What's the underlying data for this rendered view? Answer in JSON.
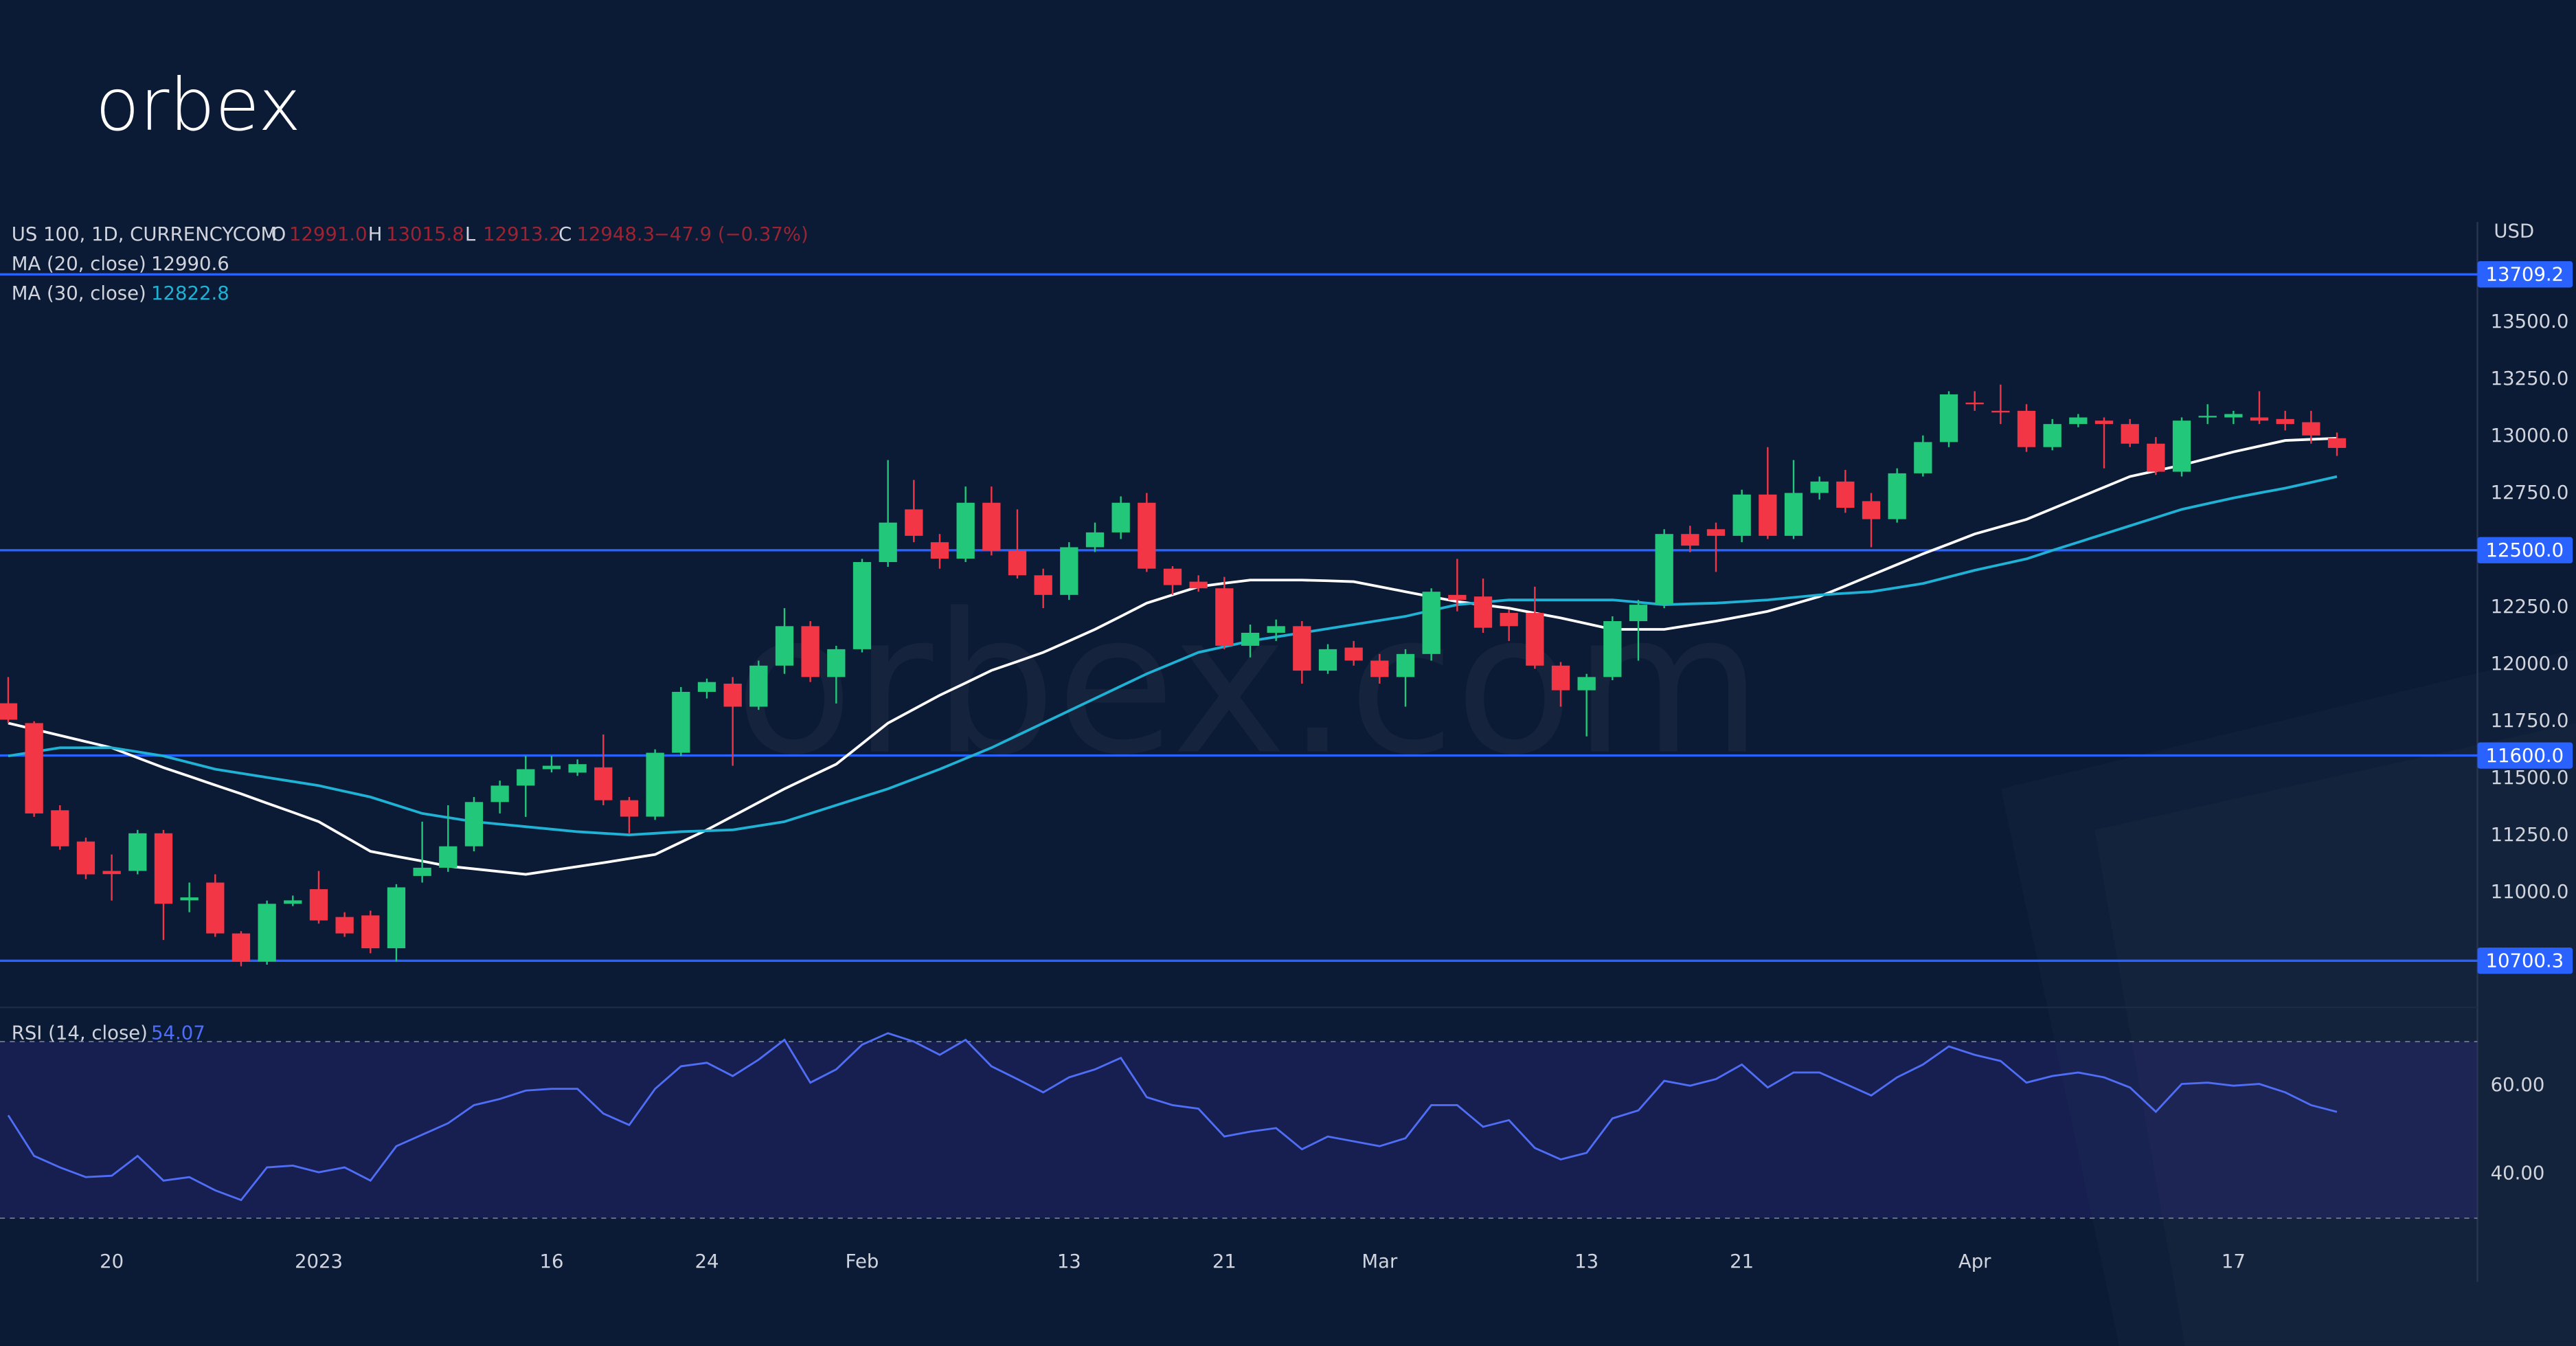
{
  "logo": "orbex",
  "watermark": "orbex.com",
  "chart_data": {
    "type": "candlestick",
    "symbol": "US 100, 1D, CURRENCYCOM",
    "ohlc": [
      {
        "label": "O",
        "value": "12991.0"
      },
      {
        "label": "H",
        "value": "13015.8"
      },
      {
        "label": "L",
        "value": "12913.2"
      },
      {
        "label": "C",
        "value": "12948.3"
      }
    ],
    "change": "−47.9 (−0.37%)",
    "currency": "USD",
    "colors": {
      "up": "#22c77a",
      "down": "#f23645",
      "header_value": "#9b2433"
    },
    "categories": [
      null,
      null,
      null,
      null,
      "20",
      null,
      null,
      null,
      null,
      null,
      null,
      null,
      "2023",
      null,
      null,
      null,
      null,
      null,
      null,
      null,
      null,
      "16",
      null,
      null,
      null,
      null,
      null,
      "24",
      null,
      null,
      null,
      null,
      null,
      "Feb",
      null,
      null,
      null,
      null,
      null,
      null,
      null,
      "13",
      null,
      null,
      null,
      null,
      null,
      "21",
      null,
      null,
      null,
      null,
      null,
      "Mar",
      null,
      null,
      null,
      null,
      null,
      null,
      null,
      "13",
      null,
      null,
      null,
      null,
      null,
      "21",
      null,
      null,
      null,
      null,
      null,
      null,
      null,
      null,
      "Apr",
      null,
      null,
      null,
      null,
      null,
      null,
      null,
      null,
      null,
      "17",
      null,
      null,
      null,
      null
    ],
    "open": [
      11829,
      11742,
      11360,
      11223,
      11094,
      11094,
      11259,
      10965,
      11043,
      10820,
      10697,
      10950,
      11014,
      10892,
      10899,
      10755,
      11072,
      11108,
      11202,
      11396,
      11468,
      11540,
      11525,
      11548,
      11404,
      11332,
      11612,
      11879,
      11915,
      11814,
      11994,
      12167,
      11944,
      12066,
      12448,
      12679,
      12535,
      12463,
      12708,
      12499,
      12390,
      12304,
      12513,
      12578,
      12708,
      12419,
      12362,
      12333,
      12081,
      12138,
      12167,
      11972,
      12073,
      12016,
      11944,
      12045,
      12304,
      12297,
      12225,
      12225,
      11994,
      11886,
      11944,
      12189,
      12261,
      12571,
      12592,
      12563,
      12744,
      12563,
      12751,
      12801,
      12715,
      12636,
      12837,
      12974,
      13147,
      13111,
      13111,
      12952,
      13053,
      13068,
      13053,
      12967,
      12844,
      13082,
      13082,
      13082,
      13075,
      13061,
      12991
    ],
    "high": [
      11944,
      11750,
      11382,
      11240,
      11166,
      11274,
      11274,
      11043,
      11079,
      10830,
      10964,
      10986,
      11094,
      10913,
      10920,
      11036,
      11310,
      11382,
      11418,
      11490,
      11598,
      11598,
      11583,
      11692,
      11418,
      11627,
      11900,
      11937,
      11944,
      12016,
      12246,
      12189,
      12081,
      12462,
      12895,
      12808,
      12571,
      12779,
      12779,
      12679,
      12419,
      12535,
      12621,
      12736,
      12751,
      12430,
      12390,
      12383,
      12174,
      12196,
      12189,
      12088,
      12102,
      12045,
      12066,
      12333,
      12462,
      12376,
      12240,
      12340,
      12010,
      11958,
      12210,
      12282,
      12592,
      12607,
      12621,
      12765,
      12952,
      12895,
      12823,
      12852,
      12751,
      12859,
      13003,
      13197,
      13197,
      13226,
      13140,
      13075,
      13097,
      13082,
      13075,
      12996,
      13082,
      13140,
      13111,
      13197,
      13111,
      13111,
      13015.8
    ],
    "low": [
      11742,
      11331,
      11187,
      11058,
      10964,
      11079,
      10791,
      10913,
      10805,
      10676,
      10683,
      10940,
      10863,
      10805,
      10733,
      10697,
      11043,
      11090,
      11180,
      11346,
      11331,
      11526,
      11511,
      11382,
      11259,
      11318,
      11598,
      11850,
      11555,
      11800,
      11958,
      11922,
      11828,
      12052,
      12427,
      12535,
      12419,
      12448,
      12477,
      12376,
      12246,
      12282,
      12492,
      12549,
      12405,
      12304,
      12318,
      12066,
      12030,
      12102,
      11915,
      11958,
      11994,
      11915,
      11814,
      12016,
      12232,
      12138,
      12102,
      11980,
      11814,
      11684,
      11930,
      12016,
      12246,
      12491,
      12405,
      12535,
      12549,
      12549,
      12722,
      12664,
      12513,
      12621,
      12823,
      12952,
      13111,
      13053,
      12931,
      12938,
      13039,
      12859,
      12952,
      12830,
      12823,
      13053,
      13053,
      13053,
      13025,
      12967,
      12913.2
    ],
    "close": [
      11757,
      11346,
      11202,
      11079,
      11080,
      11259,
      10950,
      10978,
      10820,
      10697,
      10950,
      10965,
      10877,
      10820,
      10755,
      11022,
      11108,
      11202,
      11396,
      11468,
      11540,
      11555,
      11562,
      11404,
      11332,
      11612,
      11879,
      11922,
      11814,
      11994,
      12167,
      11944,
      12066,
      12448,
      12621,
      12563,
      12463,
      12708,
      12499,
      12390,
      12304,
      12513,
      12578,
      12708,
      12419,
      12347,
      12333,
      12081,
      12138,
      12167,
      11972,
      12066,
      12016,
      11944,
      12045,
      12318,
      12282,
      12160,
      12167,
      11994,
      11886,
      11944,
      12189,
      12261,
      12571,
      12520,
      12563,
      12744,
      12563,
      12751,
      12801,
      12686,
      12636,
      12837,
      12974,
      13183,
      13140,
      13104,
      12952,
      13053,
      13082,
      13053,
      12967,
      12844,
      13068,
      13089,
      13097,
      13068,
      13053,
      13003,
      12948.3
    ],
    "ylim": [
      10503,
      13939
    ],
    "yticks": [
      {
        "value": 13500,
        "label": "13500.0"
      },
      {
        "value": 13250,
        "label": "13250.0"
      },
      {
        "value": 13000,
        "label": "13000.0"
      },
      {
        "value": 12750,
        "label": "12750.0"
      },
      {
        "value": 12250,
        "label": "12250.0"
      },
      {
        "value": 12000,
        "label": "12000.0"
      },
      {
        "value": 11750,
        "label": "11750.0"
      },
      {
        "value": 11500,
        "label": "11500.0"
      },
      {
        "value": 11250,
        "label": "11250.0"
      },
      {
        "value": 11000,
        "label": "11000.0"
      }
    ],
    "levels": [
      {
        "value": 13709.2,
        "label": "13709.2"
      },
      {
        "value": 12500,
        "label": "12500.0"
      },
      {
        "value": 11600,
        "label": "11600.0"
      },
      {
        "value": 10700.3,
        "label": "10700.3"
      }
    ],
    "level_color": "#2962ff",
    "overlays": [
      {
        "name": "MA (20, close)",
        "value_label": "12990.6",
        "color": "#ffffff",
        "label_color": "#d1d4dc",
        "values": [
          11742,
          11715,
          11688,
          11661,
          11634,
          11590,
          11547,
          11509,
          11470,
          11432,
          11391,
          11351,
          11310,
          11245,
          11180,
          11158,
          11137,
          11115,
          11103,
          11091,
          11079,
          11096,
          11113,
          11130,
          11148,
          11166,
          11220,
          11274,
          11334,
          11394,
          11454,
          11508,
          11562,
          11652,
          11742,
          11803,
          11864,
          11918,
          11973,
          12012,
          12052,
          12102,
          12153,
          12210,
          12268,
          12304,
          12340,
          12355,
          12369,
          12369,
          12369,
          12366,
          12362,
          12340,
          12318,
          12296,
          12275,
          12260,
          12246,
          12224,
          12203,
          12178,
          12153,
          12153,
          12153,
          12171,
          12189,
          12210,
          12232,
          12264,
          12297,
          12343,
          12390,
          12437,
          12484,
          12527,
          12571,
          12603,
          12635,
          12682,
          12729,
          12776,
          12823,
          12848,
          12873,
          12902,
          12931,
          12956,
          12981,
          12986,
          12990.6
        ]
      },
      {
        "name": "MA (30, close)",
        "value_label": "12822.8",
        "color": "#1fb2d4",
        "label_color": "#1fb2d4",
        "values": [
          11598,
          11616,
          11634,
          11634,
          11634,
          11616,
          11598,
          11569,
          11540,
          11522,
          11504,
          11486,
          11468,
          11443,
          11418,
          11382,
          11346,
          11328,
          11310,
          11299,
          11288,
          11277,
          11266,
          11259,
          11252,
          11259,
          11266,
          11270,
          11274,
          11292,
          11310,
          11346,
          11382,
          11418,
          11454,
          11497,
          11540,
          11587,
          11634,
          11688,
          11742,
          11796,
          11850,
          11904,
          11958,
          12005,
          12052,
          12077,
          12102,
          12120,
          12138,
          12156,
          12174,
          12192,
          12210,
          12236,
          12261,
          12272,
          12282,
          12282,
          12282,
          12282,
          12282,
          12272,
          12261,
          12265,
          12268,
          12275,
          12282,
          12293,
          12304,
          12311,
          12318,
          12336,
          12354,
          12383,
          12412,
          12437,
          12462,
          12499,
          12535,
          12571,
          12607,
          12643,
          12679,
          12704,
          12729,
          12751,
          12772,
          12797,
          12822.8
        ]
      }
    ],
    "rsi": {
      "name": "RSI (14, close)",
      "value_label": "54.07",
      "color": "#4f6df5",
      "ylim": [
        26,
        77
      ],
      "yticks": [
        {
          "value": 60,
          "label": "60.00"
        },
        {
          "value": 40,
          "label": "40.00"
        }
      ],
      "bands": [
        70,
        30
      ],
      "values": [
        53.3,
        44.1,
        41.5,
        39.3,
        39.6,
        44.1,
        38.5,
        39.3,
        36.3,
        34.1,
        41.5,
        41.9,
        40.4,
        41.5,
        38.5,
        46.3,
        48.9,
        51.5,
        55.6,
        57.0,
        58.9,
        59.3,
        59.3,
        53.7,
        51.1,
        59.3,
        64.4,
        65.2,
        62.2,
        65.9,
        70.4,
        60.7,
        63.7,
        69.3,
        71.9,
        70.0,
        67.0,
        70.4,
        64.4,
        61.5,
        58.5,
        61.9,
        63.7,
        66.3,
        57.4,
        55.6,
        54.8,
        48.5,
        49.6,
        50.4,
        45.6,
        48.5,
        47.4,
        46.3,
        48.1,
        55.6,
        55.6,
        50.7,
        52.2,
        45.9,
        43.3,
        44.8,
        52.6,
        54.4,
        61.1,
        60.0,
        61.5,
        64.8,
        59.6,
        63.0,
        63.0,
        60.4,
        57.8,
        61.9,
        64.8,
        68.9,
        67.0,
        65.6,
        60.7,
        62.2,
        63.0,
        61.9,
        59.6,
        54.1,
        60.4,
        60.7,
        60.0,
        60.4,
        58.5,
        55.6,
        54.07
      ]
    }
  }
}
